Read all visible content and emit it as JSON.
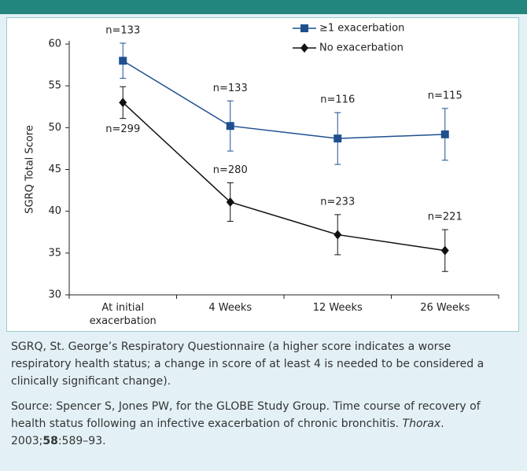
{
  "chart_data": {
    "type": "line",
    "categories": [
      "At initial exacerbation",
      "4 Weeks",
      "12 Weeks",
      "26 Weeks"
    ],
    "ylabel": "SGRQ Total Score",
    "ylim": [
      30,
      60
    ],
    "yticks": [
      30,
      35,
      40,
      45,
      50,
      55,
      60
    ],
    "series": [
      {
        "name": "≥1 exacerbation",
        "color": "#1f4f8f",
        "marker": "square",
        "values": [
          58,
          50.2,
          48.7,
          49.2
        ],
        "errors": [
          2.1,
          3.0,
          3.1,
          3.1
        ],
        "n_labels": [
          "n=133",
          "n=133",
          "n=116",
          "n=115"
        ]
      },
      {
        "name": "No exacerbation",
        "color": "#111111",
        "marker": "diamond",
        "values": [
          53,
          41.1,
          37.2,
          35.3
        ],
        "errors": [
          1.9,
          2.3,
          2.4,
          2.5
        ],
        "n_labels": [
          "n=299",
          "n=280",
          "n=233",
          "n=221"
        ]
      }
    ]
  },
  "footnote": "SGRQ, St. George’s Respiratory Questionnaire (a higher score indicates a worse respiratory health status; a change in score of at least 4 is needed to be considered a clinically significant change).",
  "source": {
    "before": "Source: Spencer S, Jones PW, for the GLOBE Study Group. Time course of recovery of health status following an infective exacerbation of chronic bronchitis. ",
    "journal": "Thorax",
    "year": ". 2003;",
    "volume": "58",
    "pages": ":589–93."
  }
}
